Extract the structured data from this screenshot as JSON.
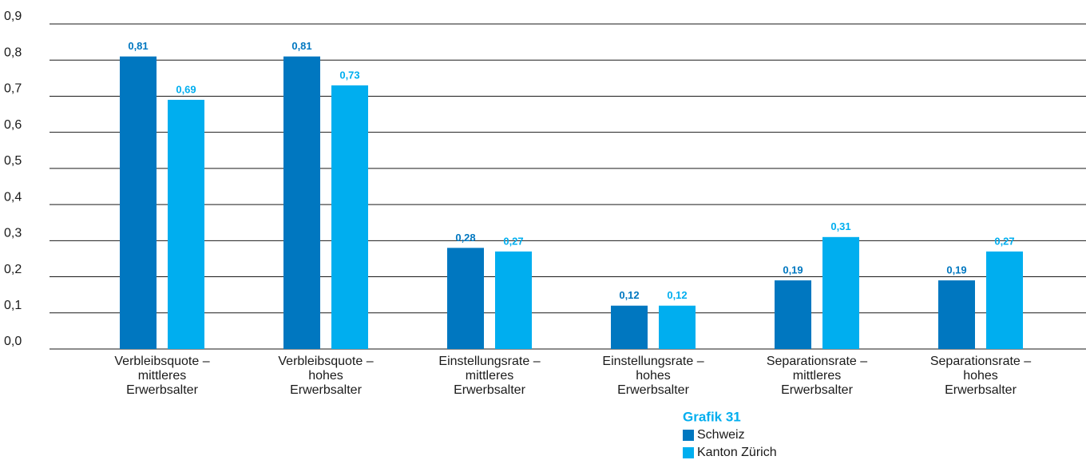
{
  "chart_data": {
    "type": "bar",
    "categories": [
      "Verbleibsquote –\nmittleres\nErwerbsalter",
      "Verbleibsquote –\nhohes\nErwerbsalter",
      "Einstellungsrate –\nmittleres\nErwerbsalter",
      "Einstellungsrate –\nhohes\nErwerbsalter",
      "Separationsrate –\nmittleres\nErwerbsalter",
      "Separationsrate –\nhohes\nErwerbsalter"
    ],
    "series": [
      {
        "name": "Schweiz",
        "color": "#0077c0",
        "values": [
          0.81,
          0.81,
          0.28,
          0.12,
          0.19,
          0.19
        ],
        "value_labels": [
          "0,81",
          "0,81",
          "0,28",
          "0,12",
          "0,19",
          "0,19"
        ]
      },
      {
        "name": "Kanton Zürich",
        "color": "#00aeef",
        "values": [
          0.69,
          0.73,
          0.27,
          0.12,
          0.31,
          0.27
        ],
        "value_labels": [
          "0,69",
          "0,73",
          "0,27",
          "0,12",
          "0,31",
          "0,27"
        ]
      }
    ],
    "ylim": [
      0,
      0.9
    ],
    "yticks": [
      {
        "value": 0,
        "label": "0,0"
      },
      {
        "value": 0.1,
        "label": "0,1"
      },
      {
        "value": 0.2,
        "label": "0,2"
      },
      {
        "value": 0.3,
        "label": "0,3"
      },
      {
        "value": 0.4,
        "label": "0,4"
      },
      {
        "value": 0.5,
        "label": "0,5"
      },
      {
        "value": 0.6,
        "label": "0,6"
      },
      {
        "value": 0.7,
        "label": "0,7"
      },
      {
        "value": 0.8,
        "label": "0,8"
      },
      {
        "value": 0.9,
        "label": "0,9"
      }
    ],
    "grid": true,
    "legend_title": "Grafik 31"
  }
}
